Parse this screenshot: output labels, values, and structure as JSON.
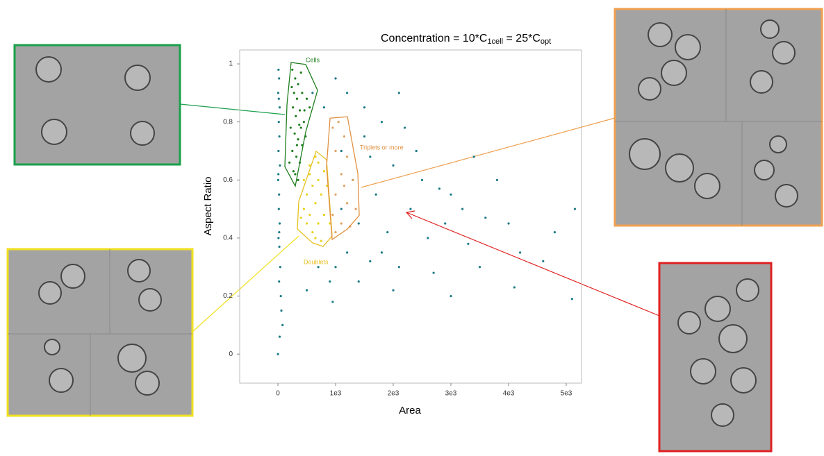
{
  "chart_data": {
    "type": "scatter",
    "title_parts": [
      "Concentration = 10*C",
      "1cell",
      " = 25*C",
      "opt"
    ],
    "xlabel": "Area",
    "ylabel": "Aspect Ratio",
    "xlim": [
      -663,
      5265
    ],
    "ylim": [
      -0.1,
      1.048
    ],
    "xticks": [
      0,
      {
        "value": 1000,
        "label": "1e3"
      },
      {
        "value": 2000,
        "label": "2e3"
      },
      {
        "value": 3000,
        "label": "3e3"
      },
      {
        "value": 4000,
        "label": "4e3"
      },
      {
        "value": 5000,
        "label": "5e3"
      }
    ],
    "yticks": [
      0,
      0.2,
      0.4,
      0.6,
      0.8,
      1
    ],
    "series": [
      {
        "color": "#1a7a86",
        "x": [
          10,
          20,
          5,
          30,
          15,
          25,
          10,
          35,
          5,
          20,
          15,
          30,
          10,
          25,
          40,
          20,
          50,
          60,
          80,
          0,
          30,
          15,
          8,
          22,
          1000,
          1200,
          1500,
          1800,
          2200,
          1100,
          1600,
          2000,
          2500,
          2800,
          3000,
          1700,
          2300,
          3200,
          3600,
          4000,
          1400,
          1900,
          2600,
          3300,
          4200,
          1200,
          1600,
          2100,
          2700,
          3500,
          4600,
          1000,
          1400,
          2000,
          3000,
          4100,
          5100,
          5150,
          4800,
          900,
          700,
          600,
          800,
          1300,
          1100,
          2400,
          3800,
          3400,
          500,
          950,
          1800,
          2900,
          1500,
          2100
        ],
        "y": [
          0.98,
          0.95,
          0.9,
          0.85,
          0.8,
          0.75,
          0.7,
          0.65,
          0.6,
          0.55,
          0.5,
          0.45,
          0.4,
          0.37,
          0.3,
          0.25,
          0.2,
          0.15,
          0.1,
          0.0,
          0.06,
          0.88,
          0.62,
          0.42,
          0.95,
          0.9,
          0.85,
          0.8,
          0.78,
          0.7,
          0.68,
          0.65,
          0.6,
          0.57,
          0.55,
          0.55,
          0.5,
          0.5,
          0.47,
          0.45,
          0.45,
          0.42,
          0.4,
          0.38,
          0.35,
          0.35,
          0.32,
          0.3,
          0.28,
          0.3,
          0.32,
          0.3,
          0.25,
          0.22,
          0.2,
          0.23,
          0.19,
          0.5,
          0.42,
          0.25,
          0.3,
          0.9,
          0.85,
          0.6,
          0.5,
          0.7,
          0.6,
          0.68,
          0.22,
          0.18,
          0.35,
          0.45,
          0.75,
          0.9
        ]
      },
      {
        "color": "#1e7d1e",
        "x": [
          250,
          300,
          350,
          400,
          280,
          330,
          420,
          500,
          260,
          310,
          380,
          450,
          550,
          220,
          290,
          350,
          420,
          480,
          250,
          320,
          380,
          200,
          300,
          350,
          270,
          400,
          330,
          460,
          240,
          370
        ],
        "y": [
          0.98,
          0.95,
          0.93,
          0.97,
          0.9,
          0.88,
          0.9,
          0.88,
          0.85,
          0.82,
          0.84,
          0.8,
          0.85,
          0.78,
          0.76,
          0.74,
          0.72,
          0.75,
          0.7,
          0.68,
          0.66,
          0.66,
          0.62,
          0.6,
          0.63,
          0.78,
          0.72,
          0.84,
          0.92,
          0.79
        ]
      },
      {
        "color": "#e8d21a",
        "x": [
          450,
          550,
          650,
          500,
          600,
          700,
          800,
          450,
          550,
          650,
          750,
          850,
          500,
          600,
          700,
          800,
          900,
          400,
          650,
          750,
          550,
          700
        ],
        "y": [
          0.6,
          0.65,
          0.68,
          0.55,
          0.58,
          0.6,
          0.63,
          0.5,
          0.48,
          0.52,
          0.55,
          0.58,
          0.45,
          0.42,
          0.45,
          0.48,
          0.45,
          0.47,
          0.4,
          0.39,
          0.62,
          0.66
        ]
      },
      {
        "color": "#e0a060",
        "x": [
          950,
          1050,
          1150,
          1000,
          1200,
          1100,
          1300,
          1000,
          1200,
          1350,
          950,
          1100,
          1250,
          1000,
          1150
        ],
        "y": [
          0.78,
          0.8,
          0.75,
          0.7,
          0.68,
          0.62,
          0.6,
          0.55,
          0.52,
          0.5,
          0.48,
          0.45,
          0.44,
          0.42,
          0.58
        ]
      }
    ],
    "gates": [
      {
        "name": "Cells",
        "color": "#1e7d1e",
        "x": [
          229,
          482,
          687,
          482,
          301,
          120,
          157
        ],
        "y": [
          1.005,
          0.998,
          0.909,
          0.766,
          0.579,
          0.646,
          0.861
        ]
      },
      {
        "name": "Doublets",
        "color": "#e6c020",
        "x": [
          361,
          663,
          843,
          940,
          783,
          602,
          337
        ],
        "y": [
          0.526,
          0.699,
          0.67,
          0.407,
          0.371,
          0.383,
          0.431
        ]
      },
      {
        "name": "Triplets or more",
        "color": "#e09040",
        "x": [
          904,
          1205,
          1386,
          1410,
          1205,
          940,
          843
        ],
        "y": [
          0.813,
          0.818,
          0.622,
          0.478,
          0.431,
          0.395,
          0.646
        ]
      }
    ]
  }
}
